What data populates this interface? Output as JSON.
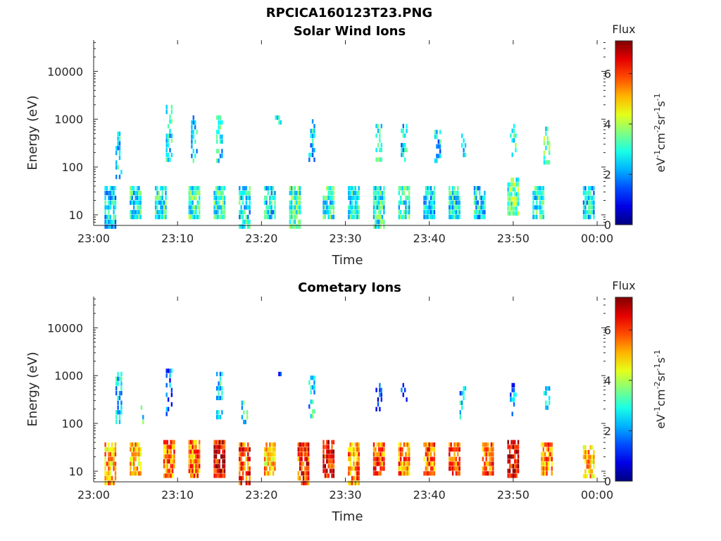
{
  "figure": {
    "filename": "RPCICA160123T23.PNG"
  },
  "chart_data": [
    {
      "type": "heatmap",
      "title": "Solar Wind Ions",
      "xlabel": "Time",
      "ylabel": "Energy (eV)",
      "yscale": "log",
      "ylim": [
        6,
        45000
      ],
      "xlim": [
        "23:00",
        "00:01"
      ],
      "xticks": [
        "23:00",
        "23:10",
        "23:20",
        "23:30",
        "23:40",
        "23:50",
        "00:00"
      ],
      "yticks": [
        "10",
        "100",
        "1000",
        "10000"
      ],
      "colorbar": {
        "title": "Flux",
        "label": "eV-1cm-2sr-1s-1",
        "range": [
          0,
          7.3
        ],
        "ticks": [
          "0",
          "2",
          "4",
          "6"
        ],
        "colormap": "jet"
      },
      "bursts": [
        {
          "t": "23:02",
          "e_low": 6,
          "e_high": 40,
          "flux": 2.5
        },
        {
          "t": "23:03",
          "e_low": 60,
          "e_high": 550,
          "flux": 2.6
        },
        {
          "t": "23:05",
          "e_low": 10,
          "e_high": 40,
          "flux": 2.8
        },
        {
          "t": "23:08",
          "e_low": 10,
          "e_high": 40,
          "flux": 3.0
        },
        {
          "t": "23:09",
          "e_low": 150,
          "e_high": 2000,
          "flux": 2.8
        },
        {
          "t": "23:12",
          "e_low": 10,
          "e_high": 40,
          "flux": 3.1
        },
        {
          "t": "23:12",
          "e_low": 150,
          "e_high": 1200,
          "flux": 2.6
        },
        {
          "t": "23:15",
          "e_low": 8,
          "e_high": 40,
          "flux": 3.0
        },
        {
          "t": "23:15",
          "e_low": 120,
          "e_high": 1200,
          "flux": 2.8
        },
        {
          "t": "23:18",
          "e_low": 6,
          "e_high": 40,
          "flux": 2.7
        },
        {
          "t": "23:21",
          "e_low": 10,
          "e_high": 40,
          "flux": 2.7
        },
        {
          "t": "23:22",
          "e_low": 900,
          "e_high": 1200,
          "flux": 2.4
        },
        {
          "t": "23:24",
          "e_low": 6,
          "e_high": 40,
          "flux": 3.2
        },
        {
          "t": "23:26",
          "e_low": 150,
          "e_high": 1000,
          "flux": 2.5
        },
        {
          "t": "23:28",
          "e_low": 10,
          "e_high": 40,
          "flux": 3.0
        },
        {
          "t": "23:31",
          "e_low": 8,
          "e_high": 40,
          "flux": 2.7
        },
        {
          "t": "23:34",
          "e_low": 6,
          "e_high": 40,
          "flux": 3.0
        },
        {
          "t": "23:34",
          "e_low": 150,
          "e_high": 800,
          "flux": 3.1
        },
        {
          "t": "23:37",
          "e_low": 10,
          "e_high": 40,
          "flux": 2.9
        },
        {
          "t": "23:37",
          "e_low": 150,
          "e_high": 800,
          "flux": 2.6
        },
        {
          "t": "23:40",
          "e_low": 8,
          "e_high": 40,
          "flux": 2.6
        },
        {
          "t": "23:41",
          "e_low": 150,
          "e_high": 600,
          "flux": 2.5
        },
        {
          "t": "23:43",
          "e_low": 10,
          "e_high": 40,
          "flux": 2.8
        },
        {
          "t": "23:44",
          "e_low": 150,
          "e_high": 500,
          "flux": 2.5
        },
        {
          "t": "23:46",
          "e_low": 8,
          "e_high": 40,
          "flux": 2.6
        },
        {
          "t": "23:50",
          "e_low": 10,
          "e_high": 60,
          "flux": 3.4
        },
        {
          "t": "23:50",
          "e_low": 150,
          "e_high": 800,
          "flux": 2.9
        },
        {
          "t": "23:53",
          "e_low": 10,
          "e_high": 40,
          "flux": 2.9
        },
        {
          "t": "23:54",
          "e_low": 120,
          "e_high": 700,
          "flux": 3.3
        },
        {
          "t": "23:59",
          "e_low": 10,
          "e_high": 40,
          "flux": 2.6
        }
      ]
    },
    {
      "type": "heatmap",
      "title": "Cometary Ions",
      "xlabel": "Time",
      "ylabel": "Energy (eV)",
      "yscale": "log",
      "ylim": [
        6,
        45000
      ],
      "xlim": [
        "23:00",
        "00:01"
      ],
      "xticks": [
        "23:00",
        "23:10",
        "23:20",
        "23:30",
        "23:40",
        "23:50",
        "00:00"
      ],
      "yticks": [
        "10",
        "100",
        "1000",
        "10000"
      ],
      "colorbar": {
        "title": "Flux",
        "label": "eV-1cm-2sr-1s-1",
        "range": [
          0,
          7.3
        ],
        "ticks": [
          "0",
          "2",
          "4",
          "6"
        ],
        "colormap": "jet"
      },
      "bursts": [
        {
          "t": "23:02",
          "e_low": 6,
          "e_high": 40,
          "flux": 5.2
        },
        {
          "t": "23:03",
          "e_low": 100,
          "e_high": 1200,
          "flux": 2.5
        },
        {
          "t": "23:05",
          "e_low": 8,
          "e_high": 40,
          "flux": 5.0
        },
        {
          "t": "23:06",
          "e_low": 100,
          "e_high": 300,
          "flux": 2.8
        },
        {
          "t": "23:09",
          "e_low": 8,
          "e_high": 45,
          "flux": 5.6
        },
        {
          "t": "23:09",
          "e_low": 150,
          "e_high": 1400,
          "flux": 1.8
        },
        {
          "t": "23:12",
          "e_low": 8,
          "e_high": 45,
          "flux": 5.5
        },
        {
          "t": "23:15",
          "e_low": 8,
          "e_high": 45,
          "flux": 6.5
        },
        {
          "t": "23:15",
          "e_low": 150,
          "e_high": 1200,
          "flux": 2.5
        },
        {
          "t": "23:18",
          "e_low": 6,
          "e_high": 40,
          "flux": 6.0
        },
        {
          "t": "23:18",
          "e_low": 100,
          "e_high": 300,
          "flux": 2.8
        },
        {
          "t": "23:21",
          "e_low": 8,
          "e_high": 40,
          "flux": 5.0
        },
        {
          "t": "23:22",
          "e_low": 1000,
          "e_high": 1200,
          "flux": 1.2
        },
        {
          "t": "23:25",
          "e_low": 6,
          "e_high": 40,
          "flux": 6.0
        },
        {
          "t": "23:26",
          "e_low": 150,
          "e_high": 1000,
          "flux": 2.6
        },
        {
          "t": "23:28",
          "e_low": 8,
          "e_high": 45,
          "flux": 6.3
        },
        {
          "t": "23:31",
          "e_low": 6,
          "e_high": 40,
          "flux": 5.4
        },
        {
          "t": "23:34",
          "e_low": 8,
          "e_high": 40,
          "flux": 5.8
        },
        {
          "t": "23:34",
          "e_low": 200,
          "e_high": 700,
          "flux": 1.0
        },
        {
          "t": "23:37",
          "e_low": 8,
          "e_high": 40,
          "flux": 5.5
        },
        {
          "t": "23:37",
          "e_low": 250,
          "e_high": 700,
          "flux": 1.4
        },
        {
          "t": "23:40",
          "e_low": 8,
          "e_high": 40,
          "flux": 5.6
        },
        {
          "t": "23:43",
          "e_low": 8,
          "e_high": 40,
          "flux": 6.0
        },
        {
          "t": "23:44",
          "e_low": 150,
          "e_high": 600,
          "flux": 2.4
        },
        {
          "t": "23:47",
          "e_low": 8,
          "e_high": 40,
          "flux": 5.8
        },
        {
          "t": "23:50",
          "e_low": 8,
          "e_high": 45,
          "flux": 6.6
        },
        {
          "t": "23:50",
          "e_low": 150,
          "e_high": 700,
          "flux": 1.8
        },
        {
          "t": "23:54",
          "e_low": 8,
          "e_high": 40,
          "flux": 5.4
        },
        {
          "t": "23:54",
          "e_low": 200,
          "e_high": 600,
          "flux": 2.6
        },
        {
          "t": "23:59",
          "e_low": 8,
          "e_high": 35,
          "flux": 5.0
        }
      ]
    }
  ]
}
